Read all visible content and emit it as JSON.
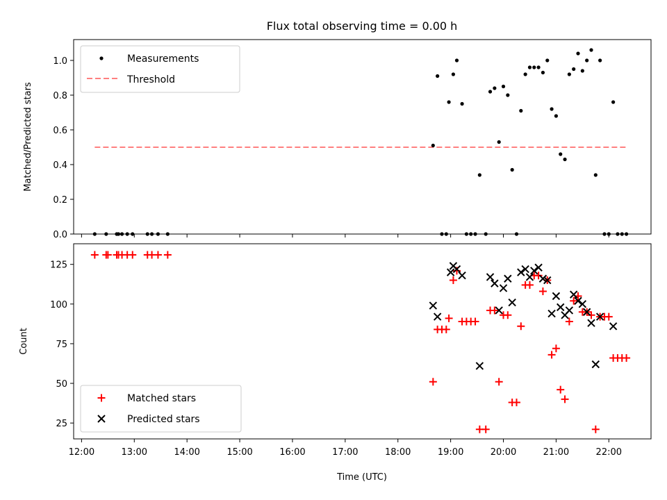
{
  "title": "Flux total observing time = 0.00 h",
  "xlabel": "Time (UTC)",
  "x_ticks": [
    "12:00",
    "13:00",
    "14:00",
    "15:00",
    "16:00",
    "17:00",
    "18:00",
    "19:00",
    "20:00",
    "21:00",
    "22:00"
  ],
  "chart_data": [
    {
      "type": "scatter",
      "ylabel": "Matched/Predicted stars",
      "xlim": [
        "11:51",
        "22:48"
      ],
      "ylim": [
        0,
        1.12
      ],
      "y_ticks": [
        "0.0",
        "0.2",
        "0.4",
        "0.6",
        "0.8",
        "1.0"
      ],
      "legend": {
        "placement": "upper-left",
        "entries": [
          "Measurements",
          "Threshold"
        ]
      },
      "threshold": {
        "name": "Threshold",
        "value": 0.5,
        "x_start": "12:15",
        "x_end": "22:20",
        "color": "#ff7f7f",
        "style": "dashed"
      },
      "series": [
        {
          "name": "Measurements",
          "color": "#000000",
          "marker": "dot",
          "points": [
            [
              "12:15",
              0
            ],
            [
              "12:28",
              0
            ],
            [
              "12:40",
              0
            ],
            [
              "12:42",
              0
            ],
            [
              "12:46",
              0
            ],
            [
              "12:52",
              0
            ],
            [
              "12:58",
              0
            ],
            [
              "13:15",
              0
            ],
            [
              "13:20",
              0
            ],
            [
              "13:27",
              0
            ],
            [
              "13:38",
              0
            ],
            [
              "18:40",
              0.51
            ],
            [
              "18:45",
              0.91
            ],
            [
              "18:50",
              0
            ],
            [
              "18:55",
              0
            ],
            [
              "18:58",
              0.76
            ],
            [
              "19:03",
              0.92
            ],
            [
              "19:07",
              1.0
            ],
            [
              "19:13",
              0.75
            ],
            [
              "19:18",
              0
            ],
            [
              "19:23",
              0
            ],
            [
              "19:28",
              0
            ],
            [
              "19:33",
              0.34
            ],
            [
              "19:40",
              0
            ],
            [
              "19:45",
              0.82
            ],
            [
              "19:50",
              0.84
            ],
            [
              "19:55",
              0.53
            ],
            [
              "20:00",
              0.85
            ],
            [
              "20:05",
              0.8
            ],
            [
              "20:10",
              0.37
            ],
            [
              "20:15",
              0
            ],
            [
              "20:20",
              0.71
            ],
            [
              "20:25",
              0.92
            ],
            [
              "20:30",
              0.96
            ],
            [
              "20:35",
              0.96
            ],
            [
              "20:40",
              0.96
            ],
            [
              "20:45",
              0.93
            ],
            [
              "20:50",
              1.0
            ],
            [
              "20:55",
              0.72
            ],
            [
              "21:00",
              0.68
            ],
            [
              "21:05",
              0.46
            ],
            [
              "21:10",
              0.43
            ],
            [
              "21:15",
              0.92
            ],
            [
              "21:20",
              0.95
            ],
            [
              "21:25",
              1.04
            ],
            [
              "21:30",
              0.94
            ],
            [
              "21:35",
              1.0
            ],
            [
              "21:40",
              1.06
            ],
            [
              "21:45",
              0.34
            ],
            [
              "21:50",
              1.0
            ],
            [
              "21:55",
              0
            ],
            [
              "22:00",
              0
            ],
            [
              "22:05",
              0.76
            ],
            [
              "22:10",
              0
            ],
            [
              "22:15",
              0
            ],
            [
              "22:20",
              0
            ]
          ]
        }
      ]
    },
    {
      "type": "scatter",
      "ylabel": "Count",
      "xlim": [
        "11:51",
        "22:48"
      ],
      "ylim": [
        15,
        138
      ],
      "y_ticks": [
        "25",
        "50",
        "75",
        "100",
        "125"
      ],
      "legend": {
        "placement": "lower-left",
        "entries": [
          "Matched stars",
          "Predicted stars"
        ]
      },
      "series": [
        {
          "name": "Matched stars",
          "color": "#ff0000",
          "marker": "plus",
          "points": [
            [
              "12:15",
              131
            ],
            [
              "12:28",
              131
            ],
            [
              "12:30",
              131
            ],
            [
              "12:40",
              131
            ],
            [
              "12:42",
              131
            ],
            [
              "12:46",
              131
            ],
            [
              "12:52",
              131
            ],
            [
              "12:58",
              131
            ],
            [
              "13:15",
              131
            ],
            [
              "13:20",
              131
            ],
            [
              "13:27",
              131
            ],
            [
              "13:38",
              131
            ],
            [
              "18:40",
              51
            ],
            [
              "18:45",
              84
            ],
            [
              "18:50",
              84
            ],
            [
              "18:55",
              84
            ],
            [
              "18:58",
              91
            ],
            [
              "19:03",
              115
            ],
            [
              "19:07",
              121
            ],
            [
              "19:13",
              89
            ],
            [
              "19:18",
              89
            ],
            [
              "19:23",
              89
            ],
            [
              "19:28",
              89
            ],
            [
              "19:33",
              21
            ],
            [
              "19:40",
              21
            ],
            [
              "19:45",
              96
            ],
            [
              "19:50",
              96
            ],
            [
              "19:55",
              51
            ],
            [
              "20:00",
              93
            ],
            [
              "20:05",
              93
            ],
            [
              "20:10",
              38
            ],
            [
              "20:15",
              38
            ],
            [
              "20:20",
              86
            ],
            [
              "20:25",
              112
            ],
            [
              "20:30",
              112
            ],
            [
              "20:35",
              118
            ],
            [
              "20:40",
              118
            ],
            [
              "20:45",
              108
            ],
            [
              "20:50",
              115
            ],
            [
              "20:55",
              68
            ],
            [
              "21:00",
              72
            ],
            [
              "21:05",
              46
            ],
            [
              "21:10",
              40
            ],
            [
              "21:15",
              89
            ],
            [
              "21:20",
              102
            ],
            [
              "21:25",
              105
            ],
            [
              "21:30",
              95
            ],
            [
              "21:35",
              95
            ],
            [
              "21:40",
              93
            ],
            [
              "21:45",
              21
            ],
            [
              "21:50",
              92
            ],
            [
              "21:55",
              92
            ],
            [
              "22:00",
              92
            ],
            [
              "22:05",
              66
            ],
            [
              "22:10",
              66
            ],
            [
              "22:15",
              66
            ],
            [
              "22:20",
              66
            ]
          ]
        },
        {
          "name": "Predicted stars",
          "color": "#000000",
          "marker": "x",
          "points": [
            [
              "18:40",
              99
            ],
            [
              "18:45",
              92
            ],
            [
              "19:00",
              120
            ],
            [
              "19:03",
              124
            ],
            [
              "19:07",
              122
            ],
            [
              "19:13",
              118
            ],
            [
              "19:33",
              61
            ],
            [
              "19:45",
              117
            ],
            [
              "19:50",
              113
            ],
            [
              "19:55",
              96
            ],
            [
              "20:00",
              110
            ],
            [
              "20:05",
              116
            ],
            [
              "20:10",
              101
            ],
            [
              "20:20",
              120
            ],
            [
              "20:25",
              122
            ],
            [
              "20:30",
              117
            ],
            [
              "20:35",
              121
            ],
            [
              "20:40",
              123
            ],
            [
              "20:45",
              116
            ],
            [
              "20:50",
              115
            ],
            [
              "20:55",
              94
            ],
            [
              "21:00",
              105
            ],
            [
              "21:05",
              98
            ],
            [
              "21:10",
              93
            ],
            [
              "21:15",
              96
            ],
            [
              "21:20",
              106
            ],
            [
              "21:25",
              102
            ],
            [
              "21:30",
              100
            ],
            [
              "21:35",
              95
            ],
            [
              "21:40",
              88
            ],
            [
              "21:45",
              62
            ],
            [
              "21:50",
              92
            ],
            [
              "22:05",
              86
            ]
          ]
        }
      ]
    }
  ]
}
